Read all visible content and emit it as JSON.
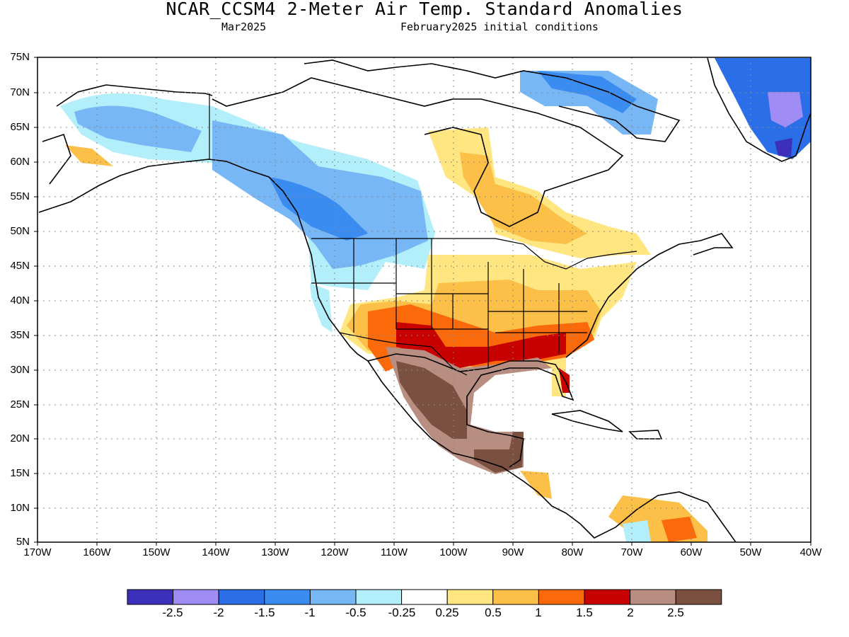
{
  "title": "NCAR_CCSM4 2-Meter Air Temp. Standard Anomalies",
  "subtitle_left": "Mar2025",
  "subtitle_right": "February2025 initial conditions",
  "map": {
    "lat_range": [
      5,
      75
    ],
    "lon_range": [
      -170,
      -40
    ],
    "lat_ticks": [
      "75N",
      "70N",
      "65N",
      "60N",
      "55N",
      "50N",
      "45N",
      "40N",
      "35N",
      "30N",
      "25N",
      "20N",
      "15N",
      "10N",
      "5N"
    ],
    "lon_ticks": [
      "170W",
      "160W",
      "150W",
      "140W",
      "130W",
      "120W",
      "110W",
      "100W",
      "90W",
      "80W",
      "70W",
      "60W",
      "50W",
      "40W"
    ],
    "grid": "dotted"
  },
  "colorbar": {
    "colors": [
      "#3c2fba",
      "#a08cf5",
      "#2a6ee8",
      "#3b8cf0",
      "#78b7f5",
      "#b2effa",
      "#ffffff",
      "#ffe680",
      "#fcc048",
      "#fa6a0a",
      "#c80000",
      "#b88e82",
      "#7a5040"
    ],
    "labels": [
      "-2.5",
      "-2",
      "-1.5",
      "-1",
      "-0.5",
      "-0.25",
      "0.25",
      "0.5",
      "1",
      "1.5",
      "2",
      "2.5"
    ]
  }
}
